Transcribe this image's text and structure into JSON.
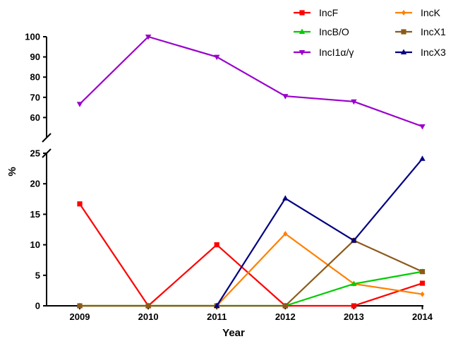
{
  "chart_data": {
    "type": "line",
    "xlabel": "Year",
    "ylabel": "%",
    "categories": [
      "2009",
      "2010",
      "2011",
      "2012",
      "2013",
      "2014"
    ],
    "y_axis_break": true,
    "ylim_upper": [
      50,
      100
    ],
    "ylim_lower": [
      0,
      25
    ],
    "yticks_upper": [
      "60",
      "70",
      "80",
      "90",
      "100"
    ],
    "yticks_lower": [
      "0",
      "5",
      "10",
      "15",
      "20",
      "25"
    ],
    "legend_position": "top-right",
    "grid": false,
    "series": [
      {
        "name": "IncF",
        "color": "#ff0000",
        "marker": "square",
        "values": [
          16.7,
          0,
          10,
          0,
          0,
          3.7
        ]
      },
      {
        "name": "IncK",
        "color": "#ff8000",
        "marker": "diamond",
        "values": [
          0,
          0,
          0,
          11.8,
          3.6,
          1.9
        ]
      },
      {
        "name": "IncB/O",
        "color": "#00cc00",
        "marker": "triangle-up",
        "values": [
          0,
          0,
          0,
          0,
          3.6,
          5.6
        ]
      },
      {
        "name": "IncX1",
        "color": "#8b5a1a",
        "marker": "square",
        "values": [
          0,
          0,
          0,
          0,
          10.7,
          5.6
        ]
      },
      {
        "name": "IncI1α/γ",
        "color": "#9900cc",
        "marker": "triangle-down",
        "values": [
          66.7,
          100,
          90,
          70.6,
          67.9,
          55.6
        ]
      },
      {
        "name": "IncX3",
        "color": "#000080",
        "marker": "triangle-up",
        "values": [
          null,
          null,
          0,
          17.6,
          10.7,
          24.1
        ]
      }
    ]
  }
}
